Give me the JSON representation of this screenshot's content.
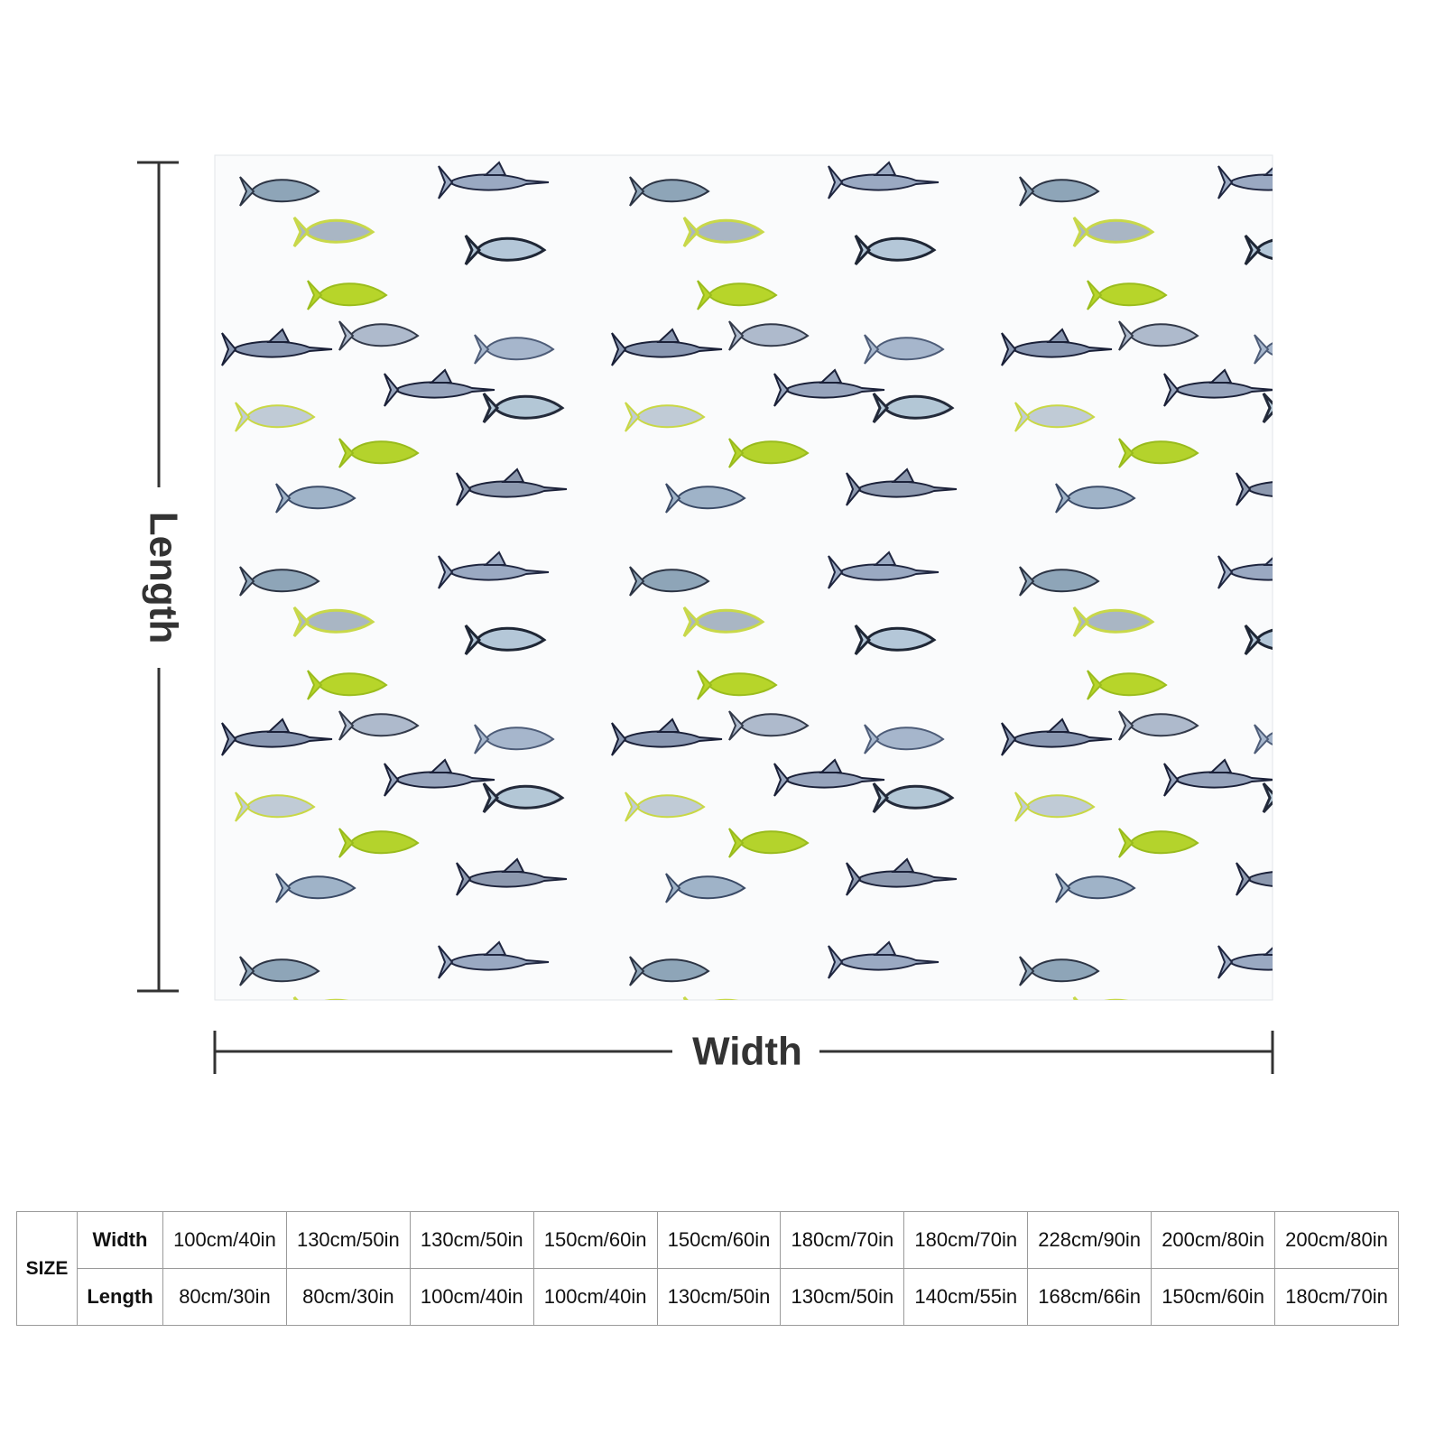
{
  "dimensions": {
    "length_label": "Length",
    "width_label": "Width"
  },
  "table": {
    "size_label": "SIZE",
    "rows": [
      {
        "label": "Width",
        "cells": [
          "100cm/40in",
          "130cm/50in",
          "130cm/50in",
          "150cm/60in",
          "150cm/60in",
          "180cm/70in",
          "180cm/70in",
          "228cm/90in",
          "200cm/80in",
          "200cm/80in"
        ]
      },
      {
        "label": "Length",
        "cells": [
          "80cm/30in",
          "80cm/30in",
          "100cm/40in",
          "100cm/40in",
          "130cm/50in",
          "130cm/50in",
          "140cm/55in",
          "168cm/66in",
          "150cm/60in",
          "180cm/70in"
        ]
      }
    ]
  }
}
